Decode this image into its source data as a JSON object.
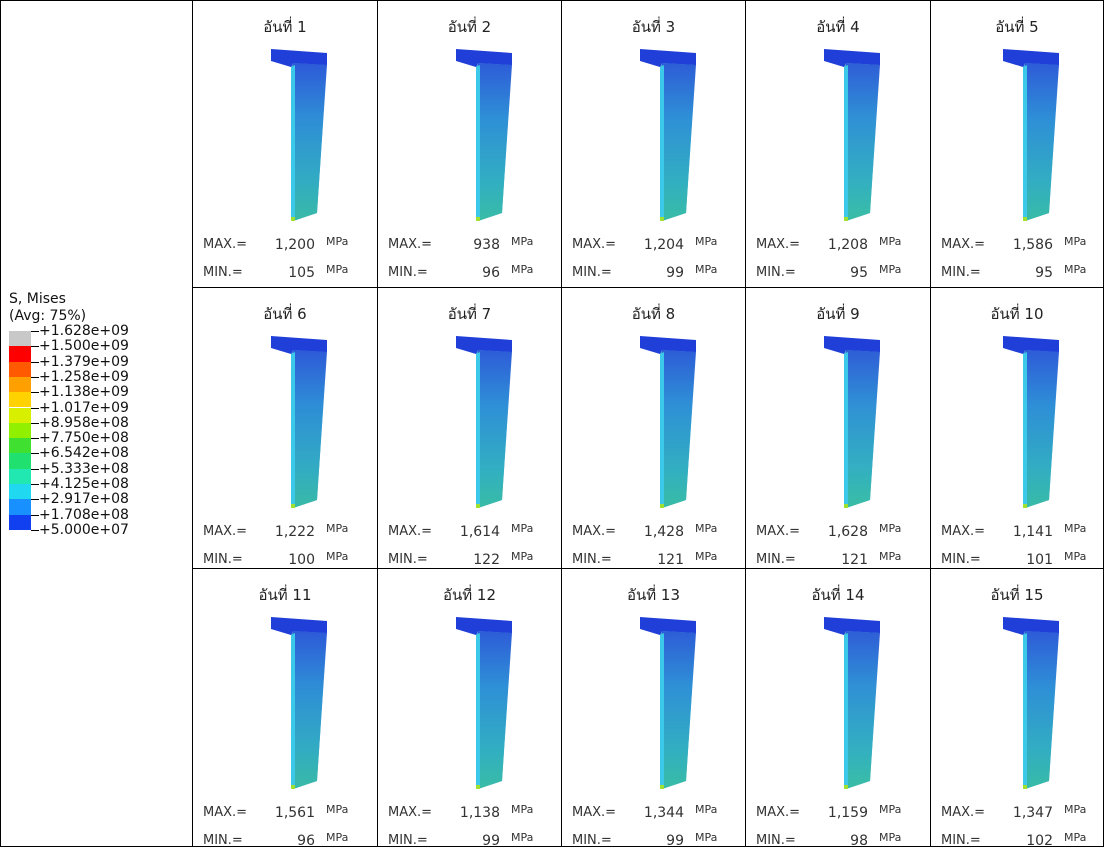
{
  "legend": {
    "title": "S, Mises",
    "subtitle": "(Avg: 75%)",
    "values": [
      "+1.628e+09",
      "+1.500e+09",
      "+1.379e+09",
      "+1.258e+09",
      "+1.138e+09",
      "+1.017e+09",
      "+8.958e+08",
      "+7.750e+08",
      "+6.542e+08",
      "+5.333e+08",
      "+4.125e+08",
      "+2.917e+08",
      "+1.708e+08",
      "+5.000e+07"
    ]
  },
  "max_label": "MAX.=",
  "min_label": "MIN.=",
  "unit": "MPa",
  "cells": [
    {
      "title": "อันที่ 1",
      "max": "1,200",
      "min": "105"
    },
    {
      "title": "อันที่ 2",
      "max": "938",
      "min": "96"
    },
    {
      "title": "อันที่ 3",
      "max": "1,204",
      "min": "99"
    },
    {
      "title": "อันที่ 4",
      "max": "1,208",
      "min": "95"
    },
    {
      "title": "อันที่ 5",
      "max": "1,586",
      "min": "95"
    },
    {
      "title": "อันที่ 6",
      "max": "1,222",
      "min": "100"
    },
    {
      "title": "อันที่ 7",
      "max": "1,614",
      "min": "122"
    },
    {
      "title": "อันที่ 8",
      "max": "1,428",
      "min": "121"
    },
    {
      "title": "อันที่ 9",
      "max": "1,628",
      "min": "121"
    },
    {
      "title": "อันที่ 10",
      "max": "1,141",
      "min": "101"
    },
    {
      "title": "อันที่ 11",
      "max": "1,561",
      "min": "96"
    },
    {
      "title": "อันที่ 12",
      "max": "1,138",
      "min": "99"
    },
    {
      "title": "อันที่ 13",
      "max": "1,344",
      "min": "99"
    },
    {
      "title": "อันที่ 14",
      "max": "1,159",
      "min": "98"
    },
    {
      "title": "อันที่ 15",
      "max": "1,347",
      "min": "102"
    }
  ]
}
